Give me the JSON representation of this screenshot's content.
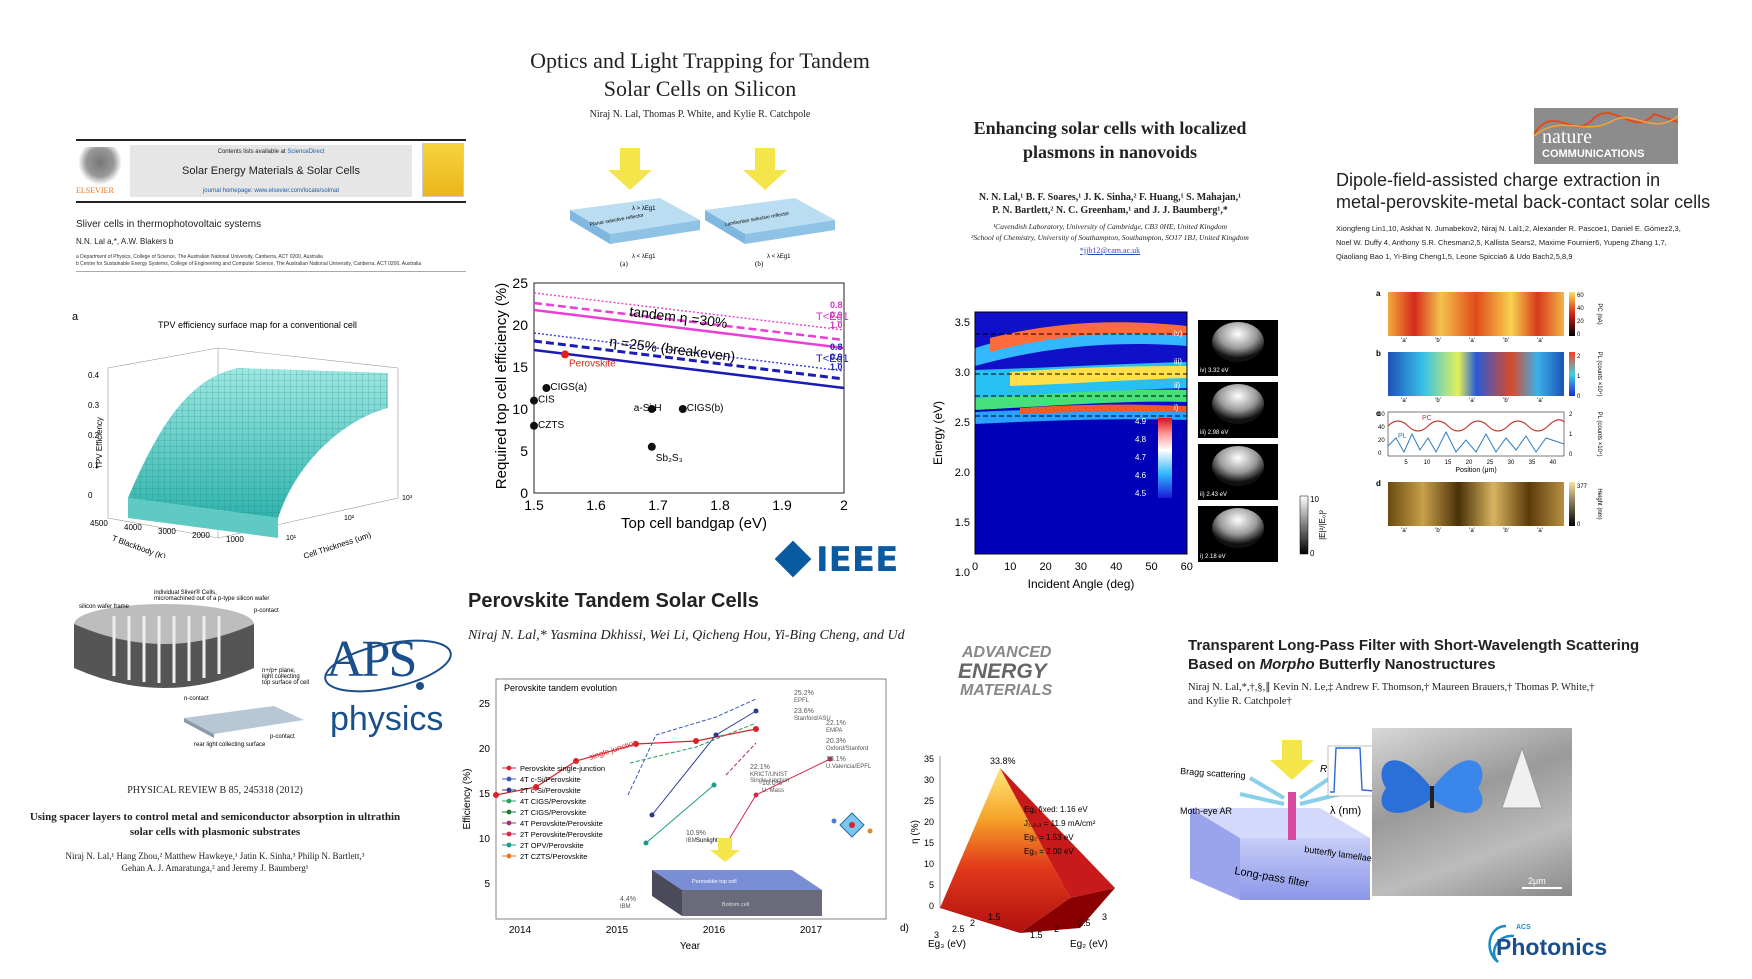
{
  "elsevier": {
    "contents": "Contents lists available at",
    "sciencedirect": "ScienceDirect",
    "journal": "Solar Energy Materials & Solar Cells",
    "homepage": "journal homepage: www.elsevier.com/locate/solmat",
    "publisher": "ELSEVIER",
    "article_title": "Sliver cells in thermophotovoltaic systems",
    "authors": "N.N. Lal a,*, A.W. Blakers b",
    "aff1": "a Department of Physics, College of Science, The Australian National University, Canberra, ACT 0200, Australia",
    "aff2": "b Centre for Sustainable Energy Systems, College of Engineering and Computer Science, The Australian National University, Canberra, ACT 0200, Australia"
  },
  "tpv": {
    "panel": "a",
    "title": "TPV efficiency surface map for a conventional cell",
    "zlabel": "TPV Efficiency",
    "xlabel": "T Blackbody (K)",
    "ylabel": "Cell Thickness (um)",
    "zticks": [
      "0.4",
      "0.3",
      "0.2",
      "0.1",
      "0"
    ],
    "xticks": [
      "4500",
      "4000",
      "3000",
      "2000",
      "1000"
    ],
    "yticks": [
      "10¹",
      "10²",
      "10³"
    ]
  },
  "sliver": {
    "l1": "individual Sliver® Cells,",
    "l2": "micromachined out of a p-type silicon wafer",
    "l3": "silicon wafer frame",
    "l4": "p-contact",
    "l5": "n+/p+ plane,",
    "l6": "light collecting",
    "l7": "top surface of cell",
    "l8": "n-contact",
    "l9": "rear light collecting surface",
    "l10": "p-contact"
  },
  "aps": {
    "logo1": "APS",
    "logo2": "physics"
  },
  "prb": {
    "citation": "PHYSICAL REVIEW B 85, 245318 (2012)",
    "title1": "Using spacer layers to control metal and semiconductor absorption in ultrathin",
    "title2": "solar cells with plasmonic substrates",
    "authors1": "Niraj N. Lal,¹ Hang Zhou,² Matthew Hawkeye,¹ Jatin K. Sinha,³ Philip N. Bartlett,³",
    "authors2": "Gehan A. J. Amaratunga,² and Jeremy J. Baumberg¹"
  },
  "optics": {
    "title1": "Optics and Light Trapping for Tandem",
    "title2": "Solar Cells on Silicon",
    "authors": "Niraj N. Lal, Thomas P. White, and Kylie R. Catchpole",
    "fig_a": "(a)",
    "fig_b": "(b)",
    "lambda_lt": "λ < λEg1",
    "lambda_gt": "λ > λEg1",
    "planar": "Planar selective reflector",
    "lambertian": "Lambertian selective reflector"
  },
  "topcell": {
    "xlabel": "Top cell bandgap (eV)",
    "ylabel": "Required top cell efficiency (%)",
    "yticks": [
      "25",
      "20",
      "15",
      "10",
      "5",
      "0"
    ],
    "xticks": [
      "1.5",
      "1.6",
      "1.7",
      "1.8",
      "1.9",
      "2"
    ],
    "tandem_label": "tandem η =30%",
    "breakeven_label": "η =25% (breakeven)",
    "t_label1": "T<Eg1",
    "t_label2": "T<Eg1",
    "r1": [
      "0.8",
      "0.9",
      "1.0"
    ],
    "r2": [
      "0.8",
      "0.9",
      "1.0"
    ],
    "points": [
      {
        "label": "Perovskite",
        "x": 1.55,
        "y": 16.5
      },
      {
        "label": "CIGS(a)",
        "x": 1.52,
        "y": 12.5
      },
      {
        "label": "CIS",
        "x": 1.5,
        "y": 11
      },
      {
        "label": "CZTS",
        "x": 1.5,
        "y": 8
      },
      {
        "label": "a-Si:H",
        "x": 1.69,
        "y": 10
      },
      {
        "label": "CIGS(b)",
        "x": 1.74,
        "y": 10
      },
      {
        "label": "Sb₂S₃",
        "x": 1.69,
        "y": 5.5
      }
    ]
  },
  "ieee": {
    "logo": "IEEE"
  },
  "plasmon": {
    "title1": "Enhancing solar cells with localized",
    "title2": "plasmons in nanovoids",
    "authors1": "N. N. Lal,¹ B. F. Soares,¹ J. K. Sinha,² F. Huang,¹ S. Mahajan,¹",
    "authors2": "P. N. Bartlett,² N. C. Greenham,¹ and J. J. Baumberg¹,*",
    "aff1": "¹Cavendish Laboratory, University of Cambridge, CB3 0HE, United Kingdom",
    "aff2": "²School of Chemistry, University of Southampton, Southampton, SO17 1BJ, United Kingdom",
    "email": "*jjb12@cam.ac.uk"
  },
  "heatmap": {
    "ylabel": "Energy (eV)",
    "xlabel": "Incident Angle (deg)",
    "yticks": [
      "3.5",
      "3.0",
      "2.5",
      "2.0",
      "1.5",
      "1.0"
    ],
    "xticks": [
      "0",
      "10",
      "20",
      "30",
      "40",
      "50",
      "60"
    ],
    "cbar": [
      "4.9",
      "4.8",
      "4.7",
      "4.6",
      "4.5"
    ],
    "modes": [
      "iv)",
      "iii)",
      "ii)",
      "i)"
    ],
    "insets": [
      "i) 2.18 eV",
      "ii) 2.43 eV",
      "iii) 2.98 eV",
      "iv) 3.32 eV"
    ],
    "cbar2": [
      "10",
      "0"
    ],
    "cbar2_label": "|E|²/|E₀|²"
  },
  "nature": {
    "logo1": "nature",
    "logo2": "COMMUNICATIONS",
    "title1": "Dipole-field-assisted charge extraction in",
    "title2": "metal-perovskite-metal back-contact solar cells",
    "authors1": "Xiongfeng Lin1,10, Askhat N. Jumabekov2, Niraj N. Lal1,2, Alexander R. Pascoe1, Daniel E. Gómez2,3,",
    "authors2": "Noel W. Duffy 4, Anthony S.R. Chesman2,5, Kallista Sears2, Maxime Fournier6, Yupeng Zhang 1,7,",
    "authors3": "Qiaoliang Bao 1, Yi-Bing Cheng1,5, Leone Spiccia6 & Udo Bach2,5,8,9"
  },
  "naturefig": {
    "panels": [
      "a",
      "b",
      "c",
      "d"
    ],
    "a_cbar": [
      "60",
      "40",
      "20",
      "0"
    ],
    "a_label": "PC (nA)",
    "b_cbar": [
      "2",
      "1",
      "0"
    ],
    "b_label": "PL (counts ×10⁴)",
    "c_left": [
      "60",
      "40",
      "20",
      "0"
    ],
    "c_right": [
      "2",
      "1",
      "0"
    ],
    "c_left_label": "PC (nA)",
    "c_right_label": "PL (counts ×10⁴)",
    "c_pc": "PC",
    "c_pl": "PL",
    "c_xticks": [
      "5",
      "10",
      "15",
      "20",
      "25",
      "30",
      "35",
      "40"
    ],
    "c_xlabel": "Position (μm)",
    "d_cbar": [
      "377",
      "0"
    ],
    "d_label": "Height (nm)",
    "marks": [
      "'a'",
      "'b'",
      "'a'",
      "'b'",
      "'a'"
    ]
  },
  "perov": {
    "title": "Perovskite Tandem Solar Cells",
    "authors": "Niraj N. Lal,* Yasmina Dkhissi, Wei Li, Qicheng Hou, Yi-Bing Cheng, and Ud"
  },
  "evolution": {
    "title": "Perovskite tandem evolution",
    "ylabel": "Efficiency (%)",
    "xlabel": "Year",
    "yticks": [
      "25",
      "20",
      "15",
      "10",
      "5"
    ],
    "xticks": [
      "2014",
      "2015",
      "2016",
      "2017"
    ],
    "single_junction": "single junction",
    "annotations": [
      {
        "t": "25.2%",
        "s": "EPFL"
      },
      {
        "t": "23.6%",
        "s": "Stanford/ASU"
      },
      {
        "t": "22.1%",
        "s": "EMPA"
      },
      {
        "t": "20.3%",
        "s": "Oxford/Stanford"
      },
      {
        "t": "22.1%",
        "s": "KRICT/UNIST"
      },
      {
        "t": "",
        "s": "Single-junction"
      },
      {
        "t": "18.1%",
        "s": "U.Valencia/EPFL"
      },
      {
        "t": "16.0%",
        "s": "U. Mass"
      },
      {
        "t": "10.9%",
        "s": "IBM"
      },
      {
        "t": "4.4%",
        "s": "IBM"
      }
    ],
    "legend": [
      "Perovskite single-junction",
      "4T c-Si/Perovskite",
      "2T c-Si/Perovskite",
      "4T CIGS/Perovskite",
      "2T CIGS/Perovskite",
      "4T Perovskite/Perovskite",
      "2T Perovskite/Perovskite",
      "2T OPV/Perovskite",
      "2T CZTS/Perovskite"
    ],
    "inset_sun": "Sunlight",
    "inset_top": "Perovskite top cell",
    "inset_bottom": "Bottom cell"
  },
  "aem": {
    "l1": "ADVANCED",
    "l2": "ENERGY",
    "l3": "MATERIALS"
  },
  "surf": {
    "panel": "d)",
    "zlabel": "η (%)",
    "xlabel": "Eg₃ (eV)",
    "ylabel": "Eg₂ (eV)",
    "zticks": [
      "35",
      "30",
      "25",
      "20",
      "15",
      "10",
      "5",
      "0"
    ],
    "xticks": [
      "3",
      "2.5",
      "2",
      "1.5"
    ],
    "yticks": [
      "1.5",
      "2",
      "2.5",
      "3"
    ],
    "peak": "33.8%",
    "eg1": "Eg₁ fixed: 1.16 eV",
    "j": "J₁,₂,₃ = 11.9 mA/cm²",
    "eg2": "Eg₂ = 1.53 eV",
    "eg3": "Eg₃ = 2.00 eV"
  },
  "filter": {
    "title1": "Transparent Long-Pass Filter with Short-Wavelength Scattering",
    "title2a": "Based on ",
    "title2b": "Morpho",
    "title2c": " Butterfly Nanostructures",
    "authors1": "Niraj N. Lal,*,†,§,∥ Kevin N. Le,‡ Andrew F. Thomson,† Maureen Brauers,† Thomas P. White,†",
    "authors2": "and Kylie R. Catchpole†",
    "bragg": "Bragg scattering",
    "motheye": "Moth-eye AR",
    "lamellae": "butterfly lamellae",
    "longpass": "Long-pass filter",
    "r": "R",
    "lambda": "λ (nm)",
    "scale": "2μm"
  },
  "acs": {
    "small": "ACS",
    "logo": "Photonics"
  }
}
